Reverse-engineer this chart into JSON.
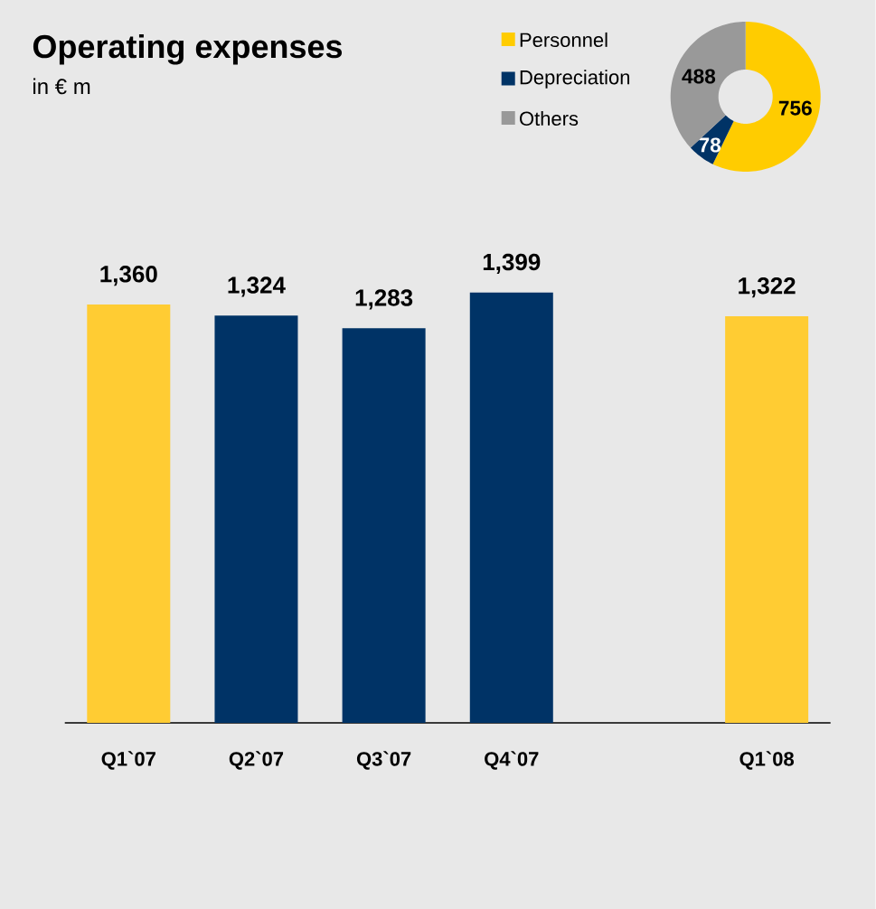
{
  "chart_data": [
    {
      "type": "bar",
      "title": "Operating expenses",
      "subtitle": "in € m",
      "categories": [
        "Q1`07",
        "Q2`07",
        "Q3`07",
        "Q4`07",
        null,
        "Q1`08"
      ],
      "values": [
        1360,
        1324,
        1283,
        1399,
        null,
        1322
      ],
      "colors": [
        "#ffcc33",
        "#003366",
        "#003366",
        "#003366",
        null,
        "#ffcc33"
      ],
      "value_labels": [
        "1,360",
        "1,324",
        "1,283",
        "1,399",
        null,
        "1,322"
      ]
    },
    {
      "type": "donut",
      "categories": [
        "Personnel",
        "Depreciation",
        "Others"
      ],
      "values": [
        756,
        78,
        488
      ],
      "colors": [
        "#ffcc00",
        "#003366",
        "#999999"
      ],
      "value_labels": [
        "756",
        "78",
        "488"
      ],
      "legend": "left"
    }
  ]
}
